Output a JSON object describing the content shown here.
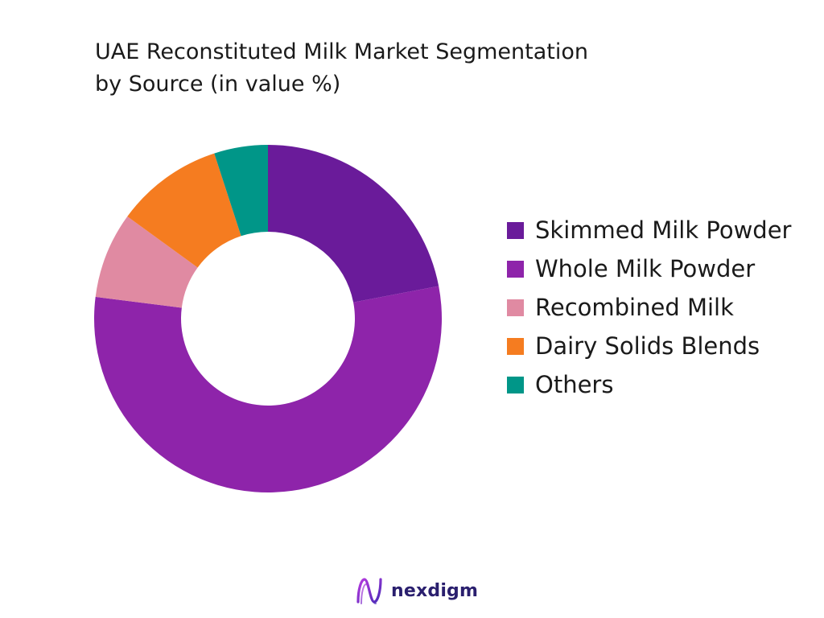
{
  "header": {
    "title_line1": "UAE Reconstituted Milk Market Segmentation",
    "title_line2": "by Source (in value %)"
  },
  "chart_data": {
    "type": "pie",
    "variant": "donut",
    "title": "UAE Reconstituted Milk Market Segmentation by Source (in value %)",
    "legend_position": "right",
    "start_angle": "12 o'clock, clockwise",
    "categories": [
      "Skimmed Milk Powder",
      "Whole Milk Powder",
      "Recombined Milk",
      "Dairy Solids Blends",
      "Others"
    ],
    "values": [
      22,
      55,
      8,
      10,
      5
    ],
    "colors": [
      "#6a1b9a",
      "#8e24aa",
      "#e08aa2",
      "#f57c20",
      "#009688"
    ]
  },
  "brand": {
    "name": "nexdigm",
    "icon": "nexdigm-logo-icon"
  }
}
